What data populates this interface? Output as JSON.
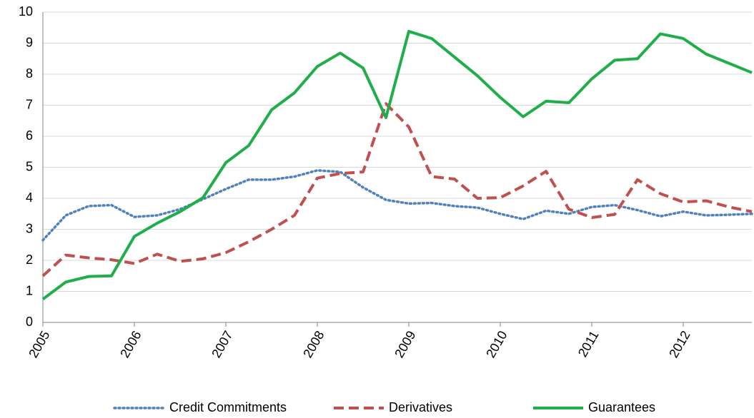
{
  "chart_data": {
    "type": "line",
    "x": [
      2005,
      2005.25,
      2005.5,
      2005.75,
      2006,
      2006.25,
      2006.5,
      2006.75,
      2007,
      2007.25,
      2007.5,
      2007.75,
      2008,
      2008.25,
      2008.5,
      2008.75,
      2009,
      2009.25,
      2009.5,
      2009.75,
      2010,
      2010.25,
      2010.5,
      2010.75,
      2011,
      2011.25,
      2011.5,
      2011.75,
      2012,
      2012.25,
      2012.5,
      2012.75
    ],
    "series": [
      {
        "name": "Credit Commitments",
        "color": "#4f81bd",
        "line_style": "dotted",
        "values": [
          2.65,
          3.45,
          3.75,
          3.78,
          3.4,
          3.45,
          3.65,
          3.97,
          4.3,
          4.6,
          4.6,
          4.7,
          4.9,
          4.85,
          4.35,
          3.95,
          3.83,
          3.85,
          3.75,
          3.7,
          3.5,
          3.33,
          3.6,
          3.5,
          3.72,
          3.78,
          3.62,
          3.42,
          3.57,
          3.45,
          3.47,
          3.5
        ]
      },
      {
        "name": "Derivatives",
        "color": "#c0504d",
        "line_style": "dashed",
        "values": [
          1.5,
          2.17,
          2.08,
          2.02,
          1.9,
          2.2,
          1.97,
          2.05,
          2.25,
          2.6,
          3.0,
          3.45,
          4.65,
          4.8,
          4.85,
          7.05,
          6.3,
          4.7,
          4.62,
          4.0,
          4.02,
          4.4,
          4.87,
          3.65,
          3.38,
          3.48,
          4.6,
          4.15,
          3.88,
          3.92,
          3.72,
          3.57
        ]
      },
      {
        "name": "Guarantees",
        "color": "#1fae4a",
        "line_style": "solid",
        "values": [
          0.75,
          1.3,
          1.48,
          1.5,
          2.77,
          3.2,
          3.57,
          4.02,
          5.15,
          5.7,
          6.85,
          7.4,
          8.25,
          8.68,
          8.2,
          6.6,
          9.38,
          9.15,
          8.55,
          7.95,
          7.25,
          6.63,
          7.13,
          7.08,
          7.85,
          8.45,
          8.5,
          9.3,
          9.15,
          8.65,
          8.35,
          8.05
        ]
      }
    ],
    "xlim": [
      2005,
      2012.75
    ],
    "xticks": [
      2005,
      2006,
      2007,
      2008,
      2009,
      2010,
      2011,
      2012
    ],
    "ylim": [
      0,
      10
    ],
    "yticks": [
      0,
      1,
      2,
      3,
      4,
      5,
      6,
      7,
      8,
      9,
      10
    ],
    "grid": true,
    "legend": "bottom"
  }
}
